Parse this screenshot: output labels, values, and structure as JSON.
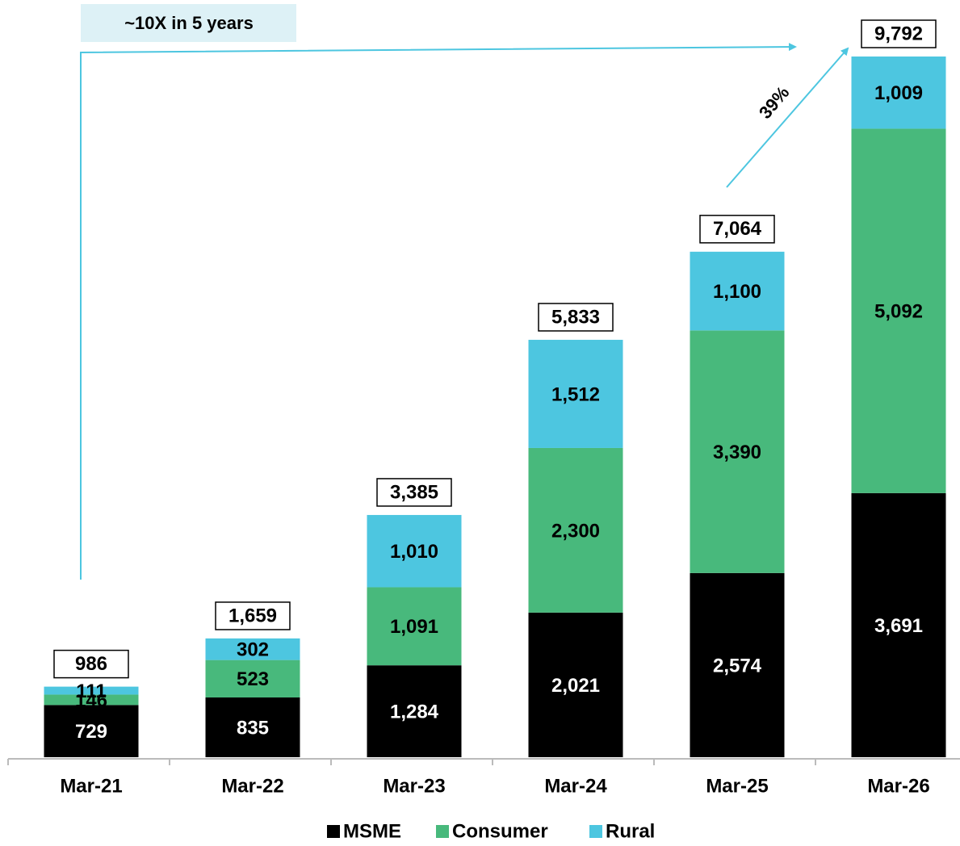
{
  "chart_data": {
    "type": "stacked_bar",
    "categories": [
      "Mar-21",
      "Mar-22",
      "Mar-23",
      "Mar-24",
      "Mar-25",
      "Mar-26"
    ],
    "series": [
      {
        "name": "MSME",
        "color": "#000000",
        "values": [
          729,
          835,
          1284,
          2021,
          2574,
          3691
        ],
        "value_labels": [
          "729",
          "835",
          "1,284",
          "2,021",
          "2,574",
          "3,691"
        ]
      },
      {
        "name": "Consumer",
        "color": "#48b97c",
        "values": [
          146,
          523,
          1091,
          2300,
          3390,
          5092
        ],
        "value_labels": [
          "146",
          "523",
          "1,091",
          "2,300",
          "3,390",
          "5,092"
        ]
      },
      {
        "name": "Rural",
        "color": "#4dc6e0",
        "values": [
          111,
          302,
          1010,
          1512,
          1100,
          1009
        ],
        "value_labels": [
          "111",
          "302",
          "1,010",
          "1,512",
          "1,100",
          "1,009"
        ]
      }
    ],
    "totals": [
      986,
      1659,
      3385,
      5833,
      7064,
      9792
    ],
    "total_labels": [
      "986",
      "1,659",
      "3,385",
      "5,833",
      "7,064",
      "9,792"
    ],
    "annotations": [
      "~10X in 5 years",
      "39%"
    ]
  }
}
